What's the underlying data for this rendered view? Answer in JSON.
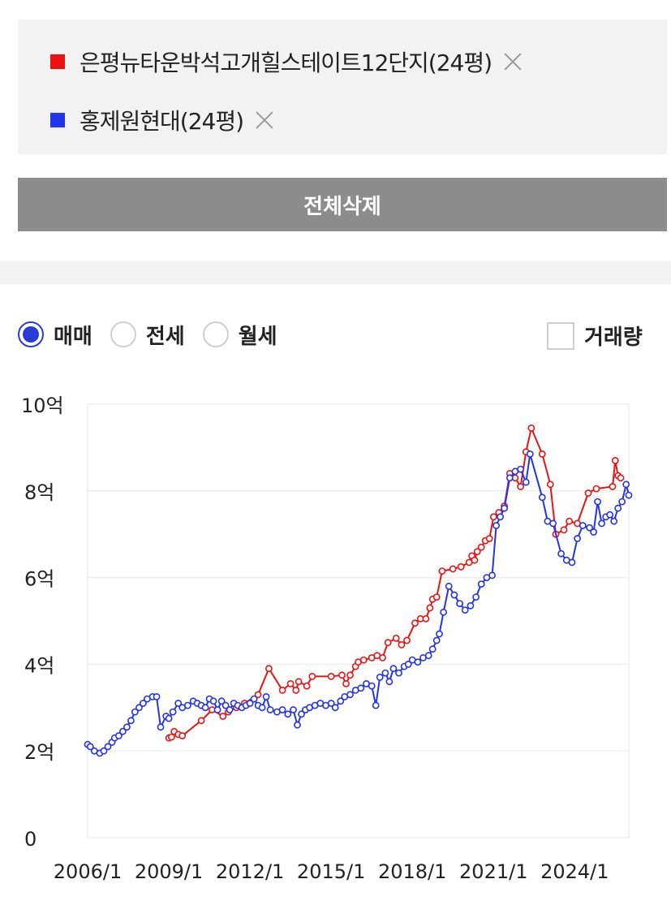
{
  "selected": [
    {
      "label": "은평뉴타운박석고개힐스테이트12단지(24평)",
      "color": "#ee1111"
    },
    {
      "label": "홍제원현대(24평)",
      "color": "#2233ee"
    }
  ],
  "clear_all_label": "전체삭제",
  "trade_types": [
    {
      "label": "매매",
      "checked": true
    },
    {
      "label": "전세",
      "checked": false
    },
    {
      "label": "월세",
      "checked": false
    }
  ],
  "volume_toggle": {
    "label": "거래량",
    "checked": false
  },
  "chart_data": {
    "type": "line",
    "x_unit": "year",
    "xlim": [
      2006.0,
      2026.0
    ],
    "ylim": [
      0,
      10
    ],
    "y_ticks": [
      0,
      2,
      4,
      6,
      8,
      10
    ],
    "y_tick_labels": [
      "0",
      "2억",
      "4억",
      "6억",
      "8억",
      "10억"
    ],
    "x_ticks": [
      2006,
      2009,
      2012,
      2015,
      2018,
      2021,
      2024
    ],
    "x_tick_labels": [
      "2006/1",
      "2009/1",
      "2012/1",
      "2015/1",
      "2018/1",
      "2021/1",
      "2024/1"
    ],
    "grid": "horizontal",
    "series": [
      {
        "name": "은평뉴타운박석고개힐스테이트12단지(24평)",
        "color": "#ee1111",
        "points": [
          [
            2009.0,
            2.3
          ],
          [
            2009.1,
            2.32
          ],
          [
            2009.2,
            2.45
          ],
          [
            2009.35,
            2.38
          ],
          [
            2009.5,
            2.35
          ],
          [
            2010.2,
            2.7
          ],
          [
            2010.6,
            2.95
          ],
          [
            2011.0,
            2.8
          ],
          [
            2011.2,
            2.9
          ],
          [
            2011.5,
            3.0
          ],
          [
            2011.8,
            3.1
          ],
          [
            2012.3,
            3.3
          ],
          [
            2012.7,
            3.9
          ],
          [
            2013.2,
            3.4
          ],
          [
            2013.5,
            3.55
          ],
          [
            2013.7,
            3.4
          ],
          [
            2013.8,
            3.6
          ],
          [
            2014.1,
            3.5
          ],
          [
            2014.3,
            3.72
          ],
          [
            2015.0,
            3.72
          ],
          [
            2015.4,
            3.75
          ],
          [
            2015.55,
            3.55
          ],
          [
            2015.7,
            3.75
          ],
          [
            2015.9,
            3.95
          ],
          [
            2016.0,
            4.05
          ],
          [
            2016.2,
            4.1
          ],
          [
            2016.5,
            4.15
          ],
          [
            2016.7,
            4.2
          ],
          [
            2016.9,
            4.15
          ],
          [
            2017.1,
            4.5
          ],
          [
            2017.4,
            4.6
          ],
          [
            2017.6,
            4.45
          ],
          [
            2017.8,
            4.55
          ],
          [
            2018.1,
            4.95
          ],
          [
            2018.3,
            5.05
          ],
          [
            2018.5,
            5.05
          ],
          [
            2018.65,
            5.3
          ],
          [
            2018.75,
            5.5
          ],
          [
            2018.9,
            5.55
          ],
          [
            2019.1,
            6.15
          ],
          [
            2019.5,
            6.2
          ],
          [
            2019.8,
            6.25
          ],
          [
            2020.1,
            6.35
          ],
          [
            2020.2,
            6.5
          ],
          [
            2020.3,
            6.4
          ],
          [
            2020.4,
            6.6
          ],
          [
            2020.55,
            6.7
          ],
          [
            2020.7,
            6.85
          ],
          [
            2020.85,
            6.9
          ],
          [
            2021.0,
            7.4
          ],
          [
            2021.2,
            7.5
          ],
          [
            2021.4,
            7.65
          ],
          [
            2021.6,
            8.4
          ],
          [
            2021.8,
            8.3
          ],
          [
            2022.0,
            8.1
          ],
          [
            2022.2,
            8.9
          ],
          [
            2022.4,
            9.45
          ],
          [
            2022.8,
            8.85
          ],
          [
            2023.1,
            8.15
          ],
          [
            2023.3,
            7.0
          ],
          [
            2023.6,
            7.1
          ],
          [
            2023.8,
            7.3
          ],
          [
            2024.1,
            7.25
          ],
          [
            2024.5,
            7.95
          ],
          [
            2024.8,
            8.05
          ],
          [
            2025.4,
            8.1
          ],
          [
            2025.5,
            8.7
          ],
          [
            2025.6,
            8.35
          ],
          [
            2025.7,
            8.3
          ]
        ]
      },
      {
        "name": "홍제원현대(24평)",
        "color": "#2233ee",
        "points": [
          [
            2006.0,
            2.15
          ],
          [
            2006.1,
            2.1
          ],
          [
            2006.25,
            2.0
          ],
          [
            2006.45,
            1.95
          ],
          [
            2006.6,
            2.0
          ],
          [
            2006.75,
            2.1
          ],
          [
            2006.9,
            2.2
          ],
          [
            2007.0,
            2.3
          ],
          [
            2007.15,
            2.35
          ],
          [
            2007.3,
            2.45
          ],
          [
            2007.45,
            2.55
          ],
          [
            2007.6,
            2.7
          ],
          [
            2007.75,
            2.9
          ],
          [
            2007.9,
            3.0
          ],
          [
            2008.05,
            3.1
          ],
          [
            2008.2,
            3.2
          ],
          [
            2008.4,
            3.25
          ],
          [
            2008.55,
            3.25
          ],
          [
            2008.7,
            2.55
          ],
          [
            2008.9,
            2.8
          ],
          [
            2009.0,
            2.75
          ],
          [
            2009.15,
            2.9
          ],
          [
            2009.35,
            3.1
          ],
          [
            2009.5,
            3.0
          ],
          [
            2009.7,
            3.05
          ],
          [
            2009.9,
            3.15
          ],
          [
            2010.05,
            3.1
          ],
          [
            2010.2,
            3.05
          ],
          [
            2010.35,
            3.0
          ],
          [
            2010.5,
            3.2
          ],
          [
            2010.65,
            3.15
          ],
          [
            2010.8,
            2.95
          ],
          [
            2010.95,
            3.15
          ],
          [
            2011.1,
            3.05
          ],
          [
            2011.25,
            2.95
          ],
          [
            2011.4,
            3.1
          ],
          [
            2011.55,
            3.05
          ],
          [
            2011.7,
            3.0
          ],
          [
            2011.85,
            3.05
          ],
          [
            2012.0,
            3.1
          ],
          [
            2012.15,
            3.2
          ],
          [
            2012.3,
            3.05
          ],
          [
            2012.45,
            3.0
          ],
          [
            2012.6,
            3.25
          ],
          [
            2012.75,
            2.95
          ],
          [
            2013.0,
            2.9
          ],
          [
            2013.2,
            2.95
          ],
          [
            2013.4,
            2.85
          ],
          [
            2013.6,
            2.95
          ],
          [
            2013.75,
            2.6
          ],
          [
            2013.9,
            2.85
          ],
          [
            2014.05,
            2.95
          ],
          [
            2014.2,
            3.0
          ],
          [
            2014.4,
            3.05
          ],
          [
            2014.6,
            3.1
          ],
          [
            2014.8,
            3.05
          ],
          [
            2015.0,
            3.1
          ],
          [
            2015.15,
            3.0
          ],
          [
            2015.35,
            3.15
          ],
          [
            2015.5,
            3.25
          ],
          [
            2015.7,
            3.3
          ],
          [
            2015.9,
            3.4
          ],
          [
            2016.1,
            3.45
          ],
          [
            2016.3,
            3.55
          ],
          [
            2016.5,
            3.5
          ],
          [
            2016.65,
            3.05
          ],
          [
            2016.8,
            3.7
          ],
          [
            2017.0,
            3.8
          ],
          [
            2017.15,
            3.6
          ],
          [
            2017.3,
            3.9
          ],
          [
            2017.5,
            3.8
          ],
          [
            2017.7,
            3.95
          ],
          [
            2017.85,
            4.0
          ],
          [
            2018.0,
            4.1
          ],
          [
            2018.2,
            4.05
          ],
          [
            2018.4,
            4.15
          ],
          [
            2018.6,
            4.2
          ],
          [
            2018.75,
            4.35
          ],
          [
            2018.9,
            4.55
          ],
          [
            2019.0,
            4.7
          ],
          [
            2019.15,
            5.2
          ],
          [
            2019.35,
            5.8
          ],
          [
            2019.55,
            5.6
          ],
          [
            2019.75,
            5.4
          ],
          [
            2019.95,
            5.25
          ],
          [
            2020.15,
            5.35
          ],
          [
            2020.35,
            5.55
          ],
          [
            2020.55,
            5.85
          ],
          [
            2020.75,
            6.0
          ],
          [
            2020.95,
            6.05
          ],
          [
            2021.1,
            7.2
          ],
          [
            2021.25,
            7.4
          ],
          [
            2021.4,
            7.6
          ],
          [
            2021.6,
            8.3
          ],
          [
            2021.8,
            8.45
          ],
          [
            2022.0,
            8.5
          ],
          [
            2022.2,
            8.2
          ],
          [
            2022.35,
            8.85
          ],
          [
            2022.8,
            7.85
          ],
          [
            2023.0,
            7.3
          ],
          [
            2023.2,
            7.25
          ],
          [
            2023.5,
            6.55
          ],
          [
            2023.7,
            6.4
          ],
          [
            2023.9,
            6.35
          ],
          [
            2024.1,
            6.9
          ],
          [
            2024.3,
            7.2
          ],
          [
            2024.55,
            7.15
          ],
          [
            2024.7,
            7.05
          ],
          [
            2024.85,
            7.75
          ],
          [
            2025.0,
            7.25
          ],
          [
            2025.15,
            7.4
          ],
          [
            2025.3,
            7.45
          ],
          [
            2025.45,
            7.3
          ],
          [
            2025.6,
            7.6
          ],
          [
            2025.75,
            7.75
          ],
          [
            2025.9,
            8.15
          ],
          [
            2026.0,
            7.9
          ]
        ]
      }
    ]
  }
}
